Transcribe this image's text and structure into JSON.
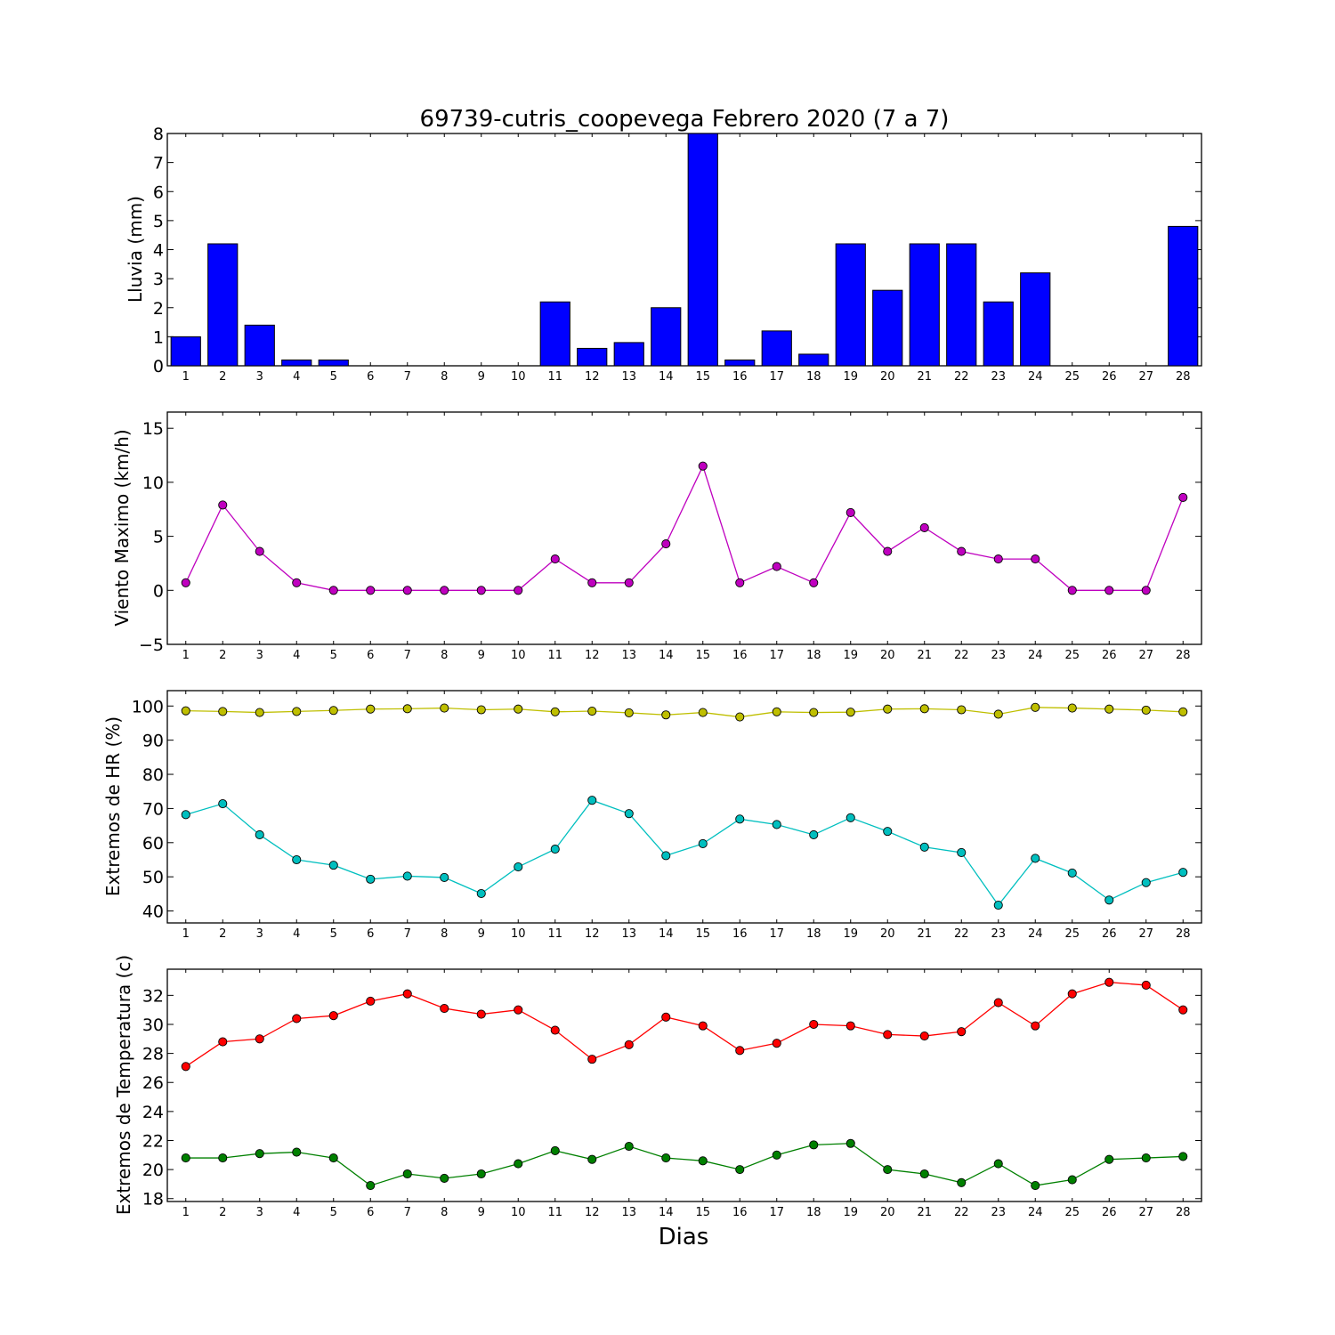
{
  "chart_data": [
    {
      "type": "bar",
      "title": "69739-cutris_coopevega Febrero 2020  (7 a 7)",
      "xlabel": "",
      "ylabel": "Lluvia (mm)",
      "categories": [
        "1",
        "2",
        "3",
        "4",
        "5",
        "6",
        "7",
        "8",
        "9",
        "10",
        "11",
        "12",
        "13",
        "14",
        "15",
        "16",
        "17",
        "18",
        "19",
        "20",
        "21",
        "22",
        "23",
        "24",
        "25",
        "26",
        "27",
        "28"
      ],
      "values": [
        1.0,
        4.2,
        1.4,
        0.2,
        0.2,
        0,
        0,
        0,
        0,
        0,
        2.2,
        0.6,
        0.8,
        2.0,
        8.0,
        0.2,
        1.2,
        0.4,
        4.2,
        2.6,
        4.2,
        4.2,
        2.2,
        3.2,
        0,
        0,
        0,
        4.8
      ],
      "ylim": [
        0,
        8
      ],
      "yticks": [
        "0",
        "1",
        "2",
        "3",
        "4",
        "5",
        "6",
        "7",
        "8"
      ],
      "colors": {
        "bar": "#0000ff"
      },
      "grid": false
    },
    {
      "type": "line",
      "ylabel": "Viento Maximo (km/h)",
      "x": [
        1,
        2,
        3,
        4,
        5,
        6,
        7,
        8,
        9,
        10,
        11,
        12,
        13,
        14,
        15,
        16,
        17,
        18,
        19,
        20,
        21,
        22,
        23,
        24,
        25,
        26,
        27,
        28
      ],
      "series": [
        {
          "values": [
            0.7,
            7.9,
            3.6,
            0.7,
            0,
            0,
            0,
            0,
            0,
            0,
            2.9,
            0.7,
            0.7,
            4.3,
            11.5,
            0.7,
            2.2,
            0.7,
            7.2,
            3.6,
            5.8,
            3.6,
            2.9,
            2.9,
            0,
            0,
            0,
            8.6
          ],
          "color": "#bf00bf"
        }
      ],
      "ylim": [
        -5,
        16.5
      ],
      "yticks": [
        "−5",
        "0",
        "5",
        "10",
        "15"
      ],
      "grid": false
    },
    {
      "type": "line",
      "ylabel": "Extremos de HR (%)",
      "x": [
        1,
        2,
        3,
        4,
        5,
        6,
        7,
        8,
        9,
        10,
        11,
        12,
        13,
        14,
        15,
        16,
        17,
        18,
        19,
        20,
        21,
        22,
        23,
        24,
        25,
        26,
        27,
        28
      ],
      "series": [
        {
          "values": [
            98.6,
            98.4,
            98.1,
            98.4,
            98.7,
            99.1,
            99.2,
            99.4,
            98.9,
            99.1,
            98.3,
            98.5,
            98.0,
            97.4,
            98.1,
            96.8,
            98.3,
            98.1,
            98.2,
            99.1,
            99.2,
            98.9,
            97.6,
            99.6,
            99.4,
            99.1,
            98.8,
            98.3
          ],
          "color": "#bfbf00"
        },
        {
          "values": [
            68.2,
            71.4,
            62.3,
            55.0,
            53.4,
            49.3,
            50.2,
            49.8,
            45.1,
            52.9,
            58.1,
            72.4,
            68.5,
            56.2,
            59.7,
            66.9,
            65.3,
            62.3,
            67.3,
            63.3,
            58.7,
            57.1,
            41.7,
            55.4,
            51.1,
            43.2,
            48.3,
            51.3
          ],
          "color": "#00bfbf"
        }
      ],
      "ylim": [
        36.5,
        104.5
      ],
      "yticks": [
        "40",
        "50",
        "60",
        "70",
        "80",
        "90",
        "100"
      ],
      "grid": false
    },
    {
      "type": "line",
      "ylabel": "Extremos de Temperatura (c)",
      "xlabel": "Dias",
      "x": [
        1,
        2,
        3,
        4,
        5,
        6,
        7,
        8,
        9,
        10,
        11,
        12,
        13,
        14,
        15,
        16,
        17,
        18,
        19,
        20,
        21,
        22,
        23,
        24,
        25,
        26,
        27,
        28
      ],
      "series": [
        {
          "values": [
            27.1,
            28.8,
            29.0,
            30.4,
            30.6,
            31.6,
            32.1,
            31.1,
            30.7,
            31.0,
            29.6,
            27.6,
            28.6,
            30.5,
            29.9,
            28.2,
            28.7,
            30.0,
            29.9,
            29.3,
            29.2,
            29.5,
            31.5,
            29.9,
            32.1,
            32.9,
            32.7,
            31.0
          ],
          "color": "#ff0000"
        },
        {
          "values": [
            20.8,
            20.8,
            21.1,
            21.2,
            20.8,
            18.9,
            19.7,
            19.4,
            19.7,
            20.4,
            21.3,
            20.7,
            21.6,
            20.8,
            20.6,
            20.0,
            21.0,
            21.7,
            21.8,
            20.0,
            19.7,
            19.1,
            20.4,
            18.9,
            19.3,
            20.7,
            20.8,
            20.9
          ],
          "color": "#008000"
        }
      ],
      "ylim": [
        17.8,
        33.8
      ],
      "yticks": [
        "18",
        "20",
        "22",
        "24",
        "26",
        "28",
        "30",
        "32"
      ],
      "grid": false
    }
  ]
}
